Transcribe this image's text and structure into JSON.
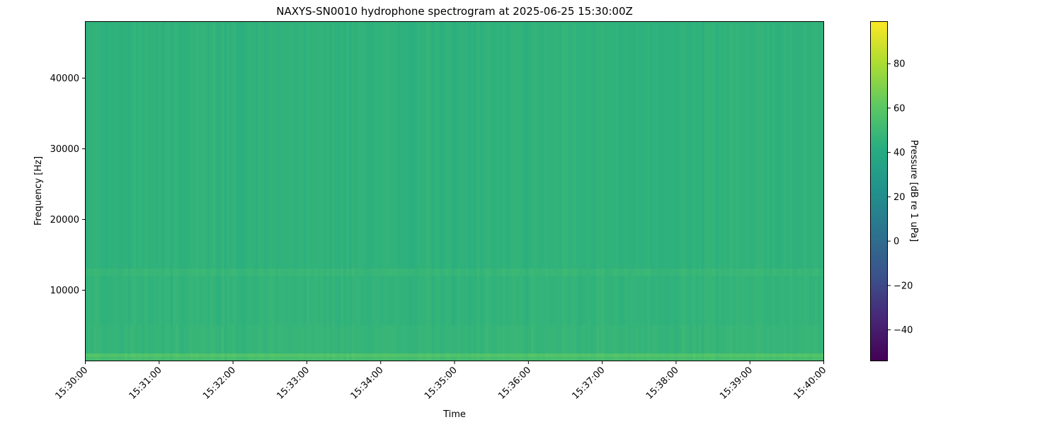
{
  "chart_data": {
    "type": "heatmap",
    "title": "NAXYS-SN0010 hydrophone spectrogram at 2025-06-25 15:30:00Z",
    "xlabel": "Time",
    "ylabel": "Frequency [Hz]",
    "colorbar_label": "Pressure [dB re 1 uPa]",
    "colormap": "viridis",
    "clim": [
      -54,
      99
    ],
    "xlim": [
      "15:30:00",
      "15:40:00"
    ],
    "ylim": [
      0,
      48000
    ],
    "x_ticks": [
      "15:30:00",
      "15:31:00",
      "15:32:00",
      "15:33:00",
      "15:34:00",
      "15:35:00",
      "15:36:00",
      "15:37:00",
      "15:38:00",
      "15:39:00",
      "15:40:00"
    ],
    "y_ticks": [
      10000,
      20000,
      30000,
      40000
    ],
    "y_tick_labels": [
      "10000",
      "20000",
      "30000",
      "40000"
    ],
    "colorbar_ticks": [
      -40,
      -20,
      0,
      20,
      40,
      60,
      80
    ],
    "colorbar_tick_labels": [
      "−40",
      "−20",
      "0",
      "20",
      "40",
      "60",
      "80"
    ],
    "bands": [
      {
        "f_low": 0,
        "f_high": 500,
        "level_db": 53
      },
      {
        "f_low": 500,
        "f_high": 1000,
        "level_db": 57
      },
      {
        "f_low": 1000,
        "f_high": 5000,
        "level_db": 47
      },
      {
        "f_low": 5000,
        "f_high": 12000,
        "level_db": 46
      },
      {
        "f_low": 12000,
        "f_high": 13000,
        "level_db": 48
      },
      {
        "f_low": 13000,
        "f_high": 48000,
        "level_db": 45
      }
    ]
  }
}
